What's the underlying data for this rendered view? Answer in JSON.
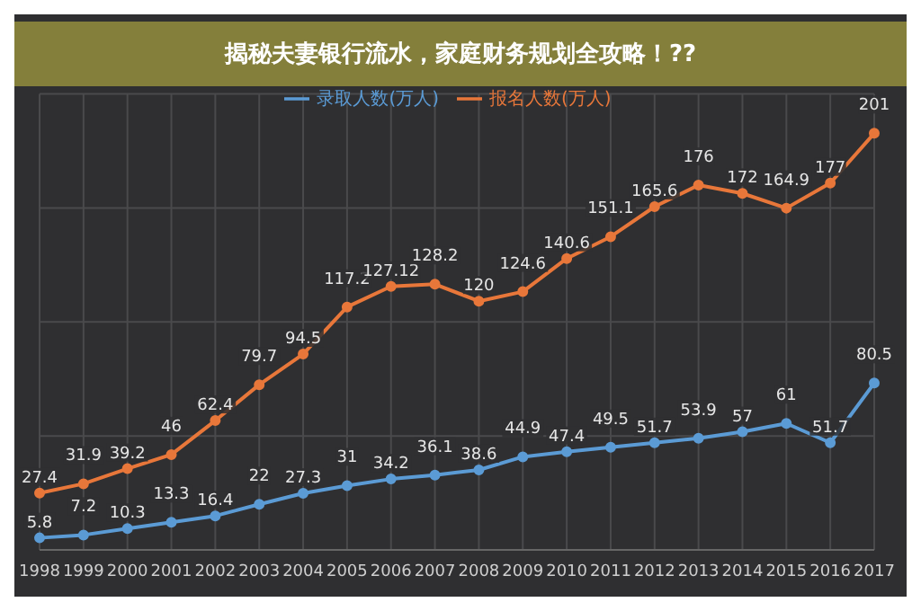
{
  "chart_data": {
    "type": "line",
    "title": "揭秘夫妻银行流水，家庭财务规划全攻略！??",
    "categories": [
      "1998",
      "1999",
      "2000",
      "2001",
      "2002",
      "2003",
      "2004",
      "2005",
      "2006",
      "2007",
      "2008",
      "2009",
      "2010",
      "2011",
      "2012",
      "2013",
      "2014",
      "2015",
      "2016",
      "2017"
    ],
    "series": [
      {
        "name": "报名人数(万人)",
        "color": "#e8773a",
        "values": [
          27.4,
          31.9,
          39.2,
          46,
          62.4,
          79.7,
          94.5,
          117.2,
          127.12,
          128.2,
          120,
          124.6,
          140.6,
          151.1,
          165.6,
          176,
          172,
          164.9,
          177,
          201
        ]
      },
      {
        "name": "录取人数(万人)",
        "color": "#5b9bd5",
        "values": [
          5.8,
          7.2,
          10.3,
          13.3,
          16.4,
          22,
          27.3,
          31,
          34.2,
          36.1,
          38.6,
          44.9,
          47.4,
          49.5,
          51.7,
          53.9,
          57,
          61,
          51.7,
          80.5
        ]
      }
    ],
    "data_labels": true,
    "grid": true,
    "legend": "top",
    "marker": "circle",
    "line_style": "solid"
  }
}
